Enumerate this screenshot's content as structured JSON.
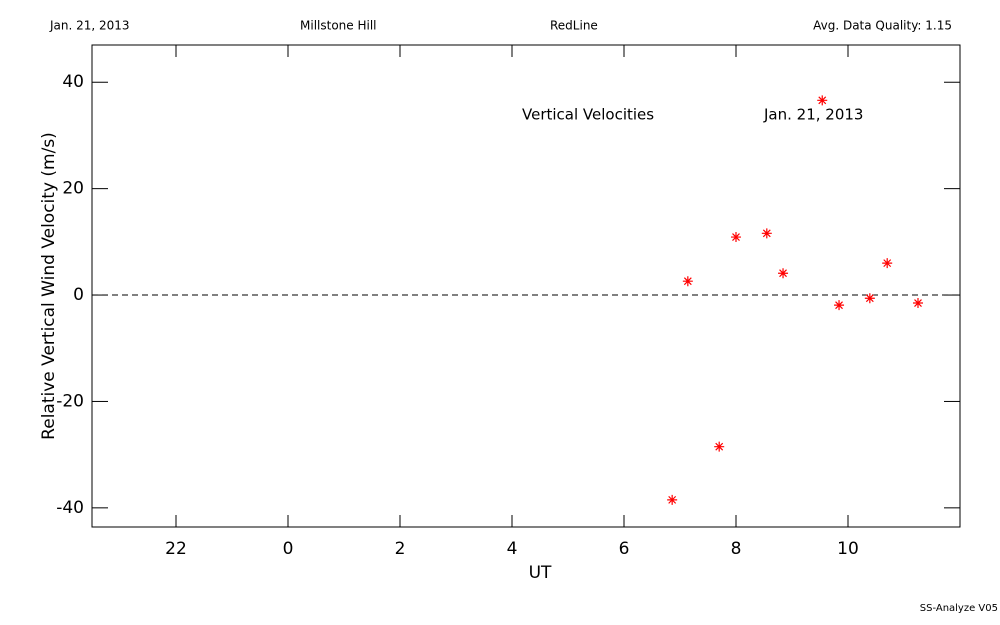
{
  "chart_data": {
    "type": "scatter",
    "header": [
      "Jan. 21, 2013",
      "Millstone Hill",
      "RedLine",
      "Avg. Data Quality: 1.15"
    ],
    "annotations": [
      "Vertical Velocities",
      "Jan. 21, 2013"
    ],
    "footer": "SS-Analyze V05",
    "xlabel": "UT",
    "ylabel": "Relative Vertical Wind Velocity (m/s)",
    "x": [
      6.86,
      7.14,
      7.7,
      8.0,
      8.55,
      8.84,
      9.54,
      9.84,
      10.39,
      10.7,
      11.25
    ],
    "values": [
      -38.5,
      2.6,
      -28.5,
      10.9,
      11.6,
      4.1,
      36.6,
      -1.9,
      -0.6,
      6.0,
      -1.5
    ],
    "color": "#ff0000",
    "reference_line": 0,
    "xlim": [
      -3.5,
      12
    ],
    "xticks": [
      {
        "value": -2,
        "label": "22"
      },
      0,
      2,
      4,
      6,
      8,
      10
    ],
    "ylim": [
      -43.6,
      47
    ],
    "yticks": [
      -40,
      -20,
      0,
      20,
      40
    ],
    "grid": false
  }
}
